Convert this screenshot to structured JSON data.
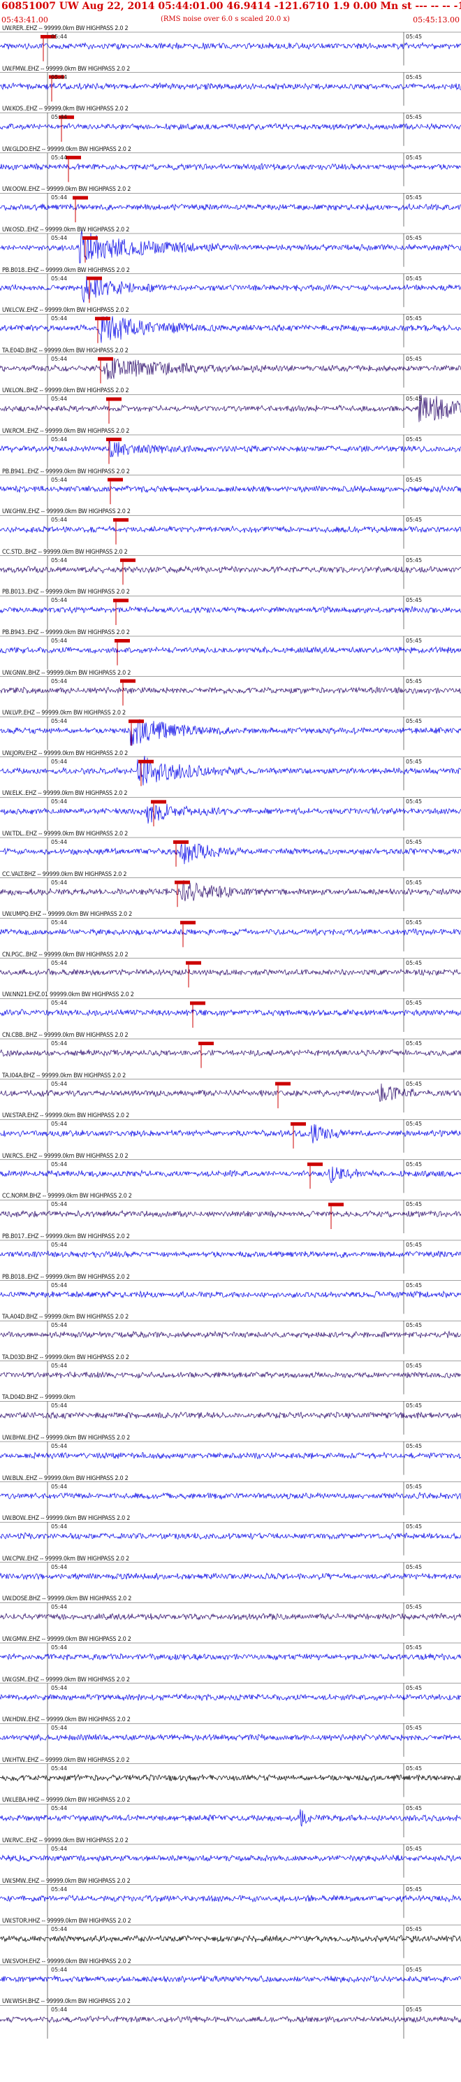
{
  "header": {
    "title": "60851007 UW Aug 22, 2014 05:44:01.00   46.9414 -121.6710  1.9 0.00 Mn st --- -- --  -1",
    "start_time": "05:43:41.00",
    "noise_note": "(RMS noise over 6.0 s scaled 20.0 x)",
    "end_time": "05:45:13.00"
  },
  "minute_labels": [
    "05:44",
    "05:45"
  ],
  "colors": {
    "trace_blue": "#0000e6",
    "trace_purple": "#2b0a6b",
    "trace_black": "#000000",
    "pick_red": "#cc0000",
    "grid": "#444444"
  },
  "traces": [
    {
      "label": "UW.RER..EHZ -- 99999.0km BW  HIGHPASS  2.0 2",
      "color": "blue"
    },
    {
      "label": "UW.FMW..EHZ -- 99999.0km BW  HIGHPASS  2.0 2",
      "color": "blue"
    },
    {
      "label": "UW.KOS..EHZ -- 99999.0km BW  HIGHPASS  2.0 2",
      "color": "blue"
    },
    {
      "label": "UW.GLDO.EHZ -- 99999.0km BW  HIGHPASS  2.0 2",
      "color": "blue"
    },
    {
      "label": "UW.OOW..EHZ -- 99999.0km BW  HIGHPASS  2.0 2",
      "color": "blue"
    },
    {
      "label": "UW.OSD..EHZ -- 99999.0km BW  HIGHPASS  2.0 2",
      "color": "blue"
    },
    {
      "label": "PB.B018..EHZ -- 99999.0km BW  HIGHPASS  2.0 2",
      "color": "blue"
    },
    {
      "label": "UW.LCW..EHZ -- 99999.0km BW  HIGHPASS  2.0 2",
      "color": "blue"
    },
    {
      "label": "TA.E04D.BHZ -- 99999.0km BW  HIGHPASS  2.0 2",
      "color": "purple"
    },
    {
      "label": "UW.LON..BHZ -- 99999.0km BW  HIGHPASS  2.0 2",
      "color": "purple"
    },
    {
      "label": "UW.RCM..EHZ -- 99999.0km BW  HIGHPASS  2.0 2",
      "color": "blue"
    },
    {
      "label": "PB.B941..EHZ -- 99999.0km BW  HIGHPASS  2.0 2",
      "color": "blue"
    },
    {
      "label": "UW.GHW..EHZ -- 99999.0km BW  HIGHPASS  2.0 2",
      "color": "blue"
    },
    {
      "label": "CC.STD..BHZ -- 99999.0km BW  HIGHPASS  2.0 2",
      "color": "purple"
    },
    {
      "label": "PB.B013..EHZ -- 99999.0km BW  HIGHPASS  2.0 2",
      "color": "blue"
    },
    {
      "label": "PB.B943..EHZ -- 99999.0km BW  HIGHPASS  2.0 2",
      "color": "blue"
    },
    {
      "label": "UW.GNW..BHZ -- 99999.0km BW  HIGHPASS  2.0 2",
      "color": "purple"
    },
    {
      "label": "UW.LVP..EHZ -- 99999.0km BW  HIGHPASS  2.0 2",
      "color": "blue"
    },
    {
      "label": "UW.JORV.EHZ -- 99999.0km BW  HIGHPASS  2.0 2",
      "color": "blue"
    },
    {
      "label": "UW.ELK..EHZ -- 99999.0km BW  HIGHPASS  2.0 2",
      "color": "blue"
    },
    {
      "label": "UW.TDL..EHZ -- 99999.0km BW  HIGHPASS  2.0 2",
      "color": "blue"
    },
    {
      "label": "CC.VALT.BHZ -- 99999.0km BW  HIGHPASS  2.0 2",
      "color": "purple"
    },
    {
      "label": "UW.UMPQ.EHZ -- 99999.0km BW  HIGHPASS  2.0 2",
      "color": "blue"
    },
    {
      "label": "CN.PGC..BHZ -- 99999.0km BW  HIGHPASS  2.0 2",
      "color": "purple"
    },
    {
      "label": "UW.NN21.EHZ.01 99999.0km BW  HIGHPASS  2.0 2",
      "color": "blue"
    },
    {
      "label": "CN.CBB..BHZ -- 99999.0km BW  HIGHPASS  2.0 2",
      "color": "purple"
    },
    {
      "label": "TA.I04A.BHZ -- 99999.0km BW  HIGHPASS  2.0 2",
      "color": "purple"
    },
    {
      "label": "UW.STAR.EHZ -- 99999.0km BW  HIGHPASS  2.0 2",
      "color": "blue"
    },
    {
      "label": "UW.RCS..EHZ -- 99999.0km BW  HIGHPASS  2.0 2",
      "color": "blue"
    },
    {
      "label": "CC.NORM.BHZ -- 99999.0km BW  HIGHPASS  2.0 2",
      "color": "purple"
    },
    {
      "label": "PB.B017..EHZ -- 99999.0km BW  HIGHPASS  2.0 2",
      "color": "blue"
    },
    {
      "label": "PB.B018..EHZ -- 99999.0km BW  HIGHPASS  2.0 2",
      "color": "blue"
    },
    {
      "label": "TA.A04D.BHZ -- 99999.0km BW  HIGHPASS  2.0 2",
      "color": "purple"
    },
    {
      "label": "TA.D03D.BHZ -- 99999.0km BW  HIGHPASS  2.0 2",
      "color": "purple"
    },
    {
      "label": "TA.D04D.BHZ -- 99999.0km",
      "color": "purple"
    },
    {
      "label": "UW.BHW..EHZ -- 99999.0km BW  HIGHPASS  2.0 2",
      "color": "blue"
    },
    {
      "label": "UW.BLN..EHZ -- 99999.0km BW  HIGHPASS  2.0 2",
      "color": "blue"
    },
    {
      "label": "UW.BOW..EHZ -- 99999.0km BW  HIGHPASS  2.0 2",
      "color": "blue"
    },
    {
      "label": "UW.CPW..EHZ -- 99999.0km BW  HIGHPASS  2.0 2",
      "color": "blue"
    },
    {
      "label": "UW.DOSE.BHZ -- 99999.0km BW  HIGHPASS  2.0 2",
      "color": "purple"
    },
    {
      "label": "UW.GMW..EHZ -- 99999.0km BW  HIGHPASS  2.0 2",
      "color": "blue"
    },
    {
      "label": "UW.GSM..EHZ -- 99999.0km BW  HIGHPASS  2.0 2",
      "color": "blue"
    },
    {
      "label": "UW.HDW..EHZ -- 99999.0km BW  HIGHPASS  2.0 2",
      "color": "blue"
    },
    {
      "label": "UW.HTW..EHZ -- 99999.0km BW  HIGHPASS  2.0 2",
      "color": "black"
    },
    {
      "label": "UW.LEBA.HHZ -- 99999.0km BW  HIGHPASS  2.0 2",
      "color": "blue"
    },
    {
      "label": "UW.RVC..EHZ -- 99999.0km BW  HIGHPASS  2.0 2",
      "color": "blue"
    },
    {
      "label": "UW.SMW..EHZ -- 99999.0km BW  HIGHPASS  2.0 2",
      "color": "blue"
    },
    {
      "label": "UW.STOR.HHZ -- 99999.0km BW  HIGHPASS  2.0 2",
      "color": "black"
    },
    {
      "label": "UW.SVOH.EHZ -- 99999.0km BW  HIGHPASS  2.0 2",
      "color": "blue"
    },
    {
      "label": "UW.WISH.BHZ -- 99999.0km BW  HIGHPASS  2.0 2",
      "color": "purple"
    }
  ]
}
